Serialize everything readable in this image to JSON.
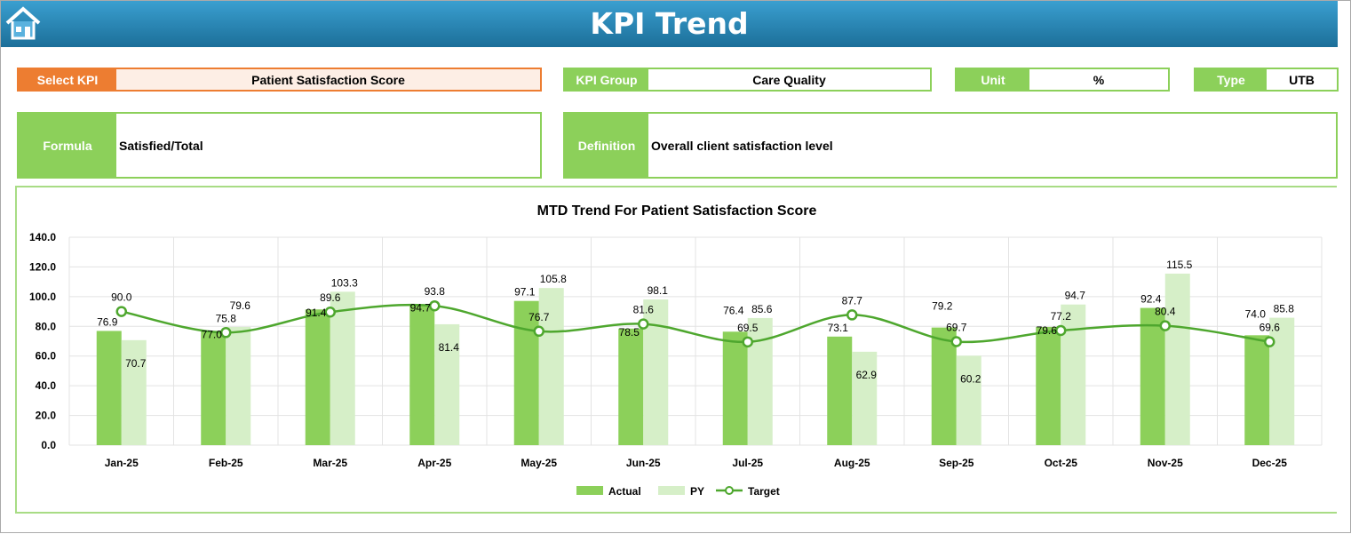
{
  "header": {
    "title": "KPI Trend",
    "home_icon": "home-icon"
  },
  "fields": {
    "select_kpi": {
      "label": "Select KPI",
      "value": "Patient Satisfaction Score"
    },
    "kpi_group": {
      "label": "KPI Group",
      "value": "Care Quality"
    },
    "unit": {
      "label": "Unit",
      "value": "%"
    },
    "type": {
      "label": "Type",
      "value": "UTB"
    },
    "formula": {
      "label": "Formula",
      "value": "Satisfied/Total"
    },
    "definition": {
      "label": "Definition",
      "value": "Overall client satisfaction level"
    }
  },
  "colors": {
    "accent": "#8cd05a",
    "select": "#ed7d31",
    "actual": "#8cd05a",
    "py": "#d6efc8",
    "target": "#4ea72e",
    "header": "#1f77a6"
  },
  "chart_data": {
    "type": "bar",
    "title": "MTD Trend For Patient Satisfaction Score",
    "categories": [
      "Jan-25",
      "Feb-25",
      "Mar-25",
      "Apr-25",
      "May-25",
      "Jun-25",
      "Jul-25",
      "Aug-25",
      "Sep-25",
      "Oct-25",
      "Nov-25",
      "Dec-25"
    ],
    "series": [
      {
        "name": "Actual",
        "type": "bar",
        "values": [
          76.9,
          77.0,
          91.4,
          94.7,
          97.1,
          78.5,
          76.4,
          73.1,
          79.2,
          79.6,
          92.4,
          74.0
        ]
      },
      {
        "name": "PY",
        "type": "bar",
        "values": [
          70.7,
          79.6,
          103.3,
          81.4,
          105.8,
          98.1,
          85.6,
          62.9,
          60.2,
          94.7,
          115.5,
          85.8
        ]
      },
      {
        "name": "Target",
        "type": "line",
        "values": [
          90.0,
          75.8,
          89.6,
          93.8,
          76.7,
          81.6,
          69.5,
          87.7,
          69.7,
          77.2,
          80.4,
          69.6
        ]
      }
    ],
    "ylim": [
      0,
      140
    ],
    "yticks": [
      "0.0",
      "20.0",
      "40.0",
      "60.0",
      "80.0",
      "100.0",
      "120.0",
      "140.0"
    ],
    "grid": true,
    "legend": "bottom"
  }
}
